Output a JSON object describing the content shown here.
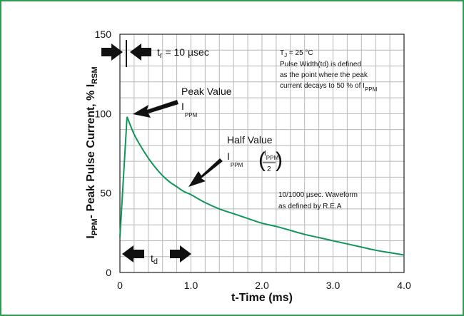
{
  "colors": {
    "frame": "#2e9a52",
    "curve": "#12955a",
    "grid": "#b8b8b8",
    "text": "#111111"
  },
  "chart_data": {
    "type": "line",
    "xlabel": "t-Time (ms)",
    "ylabel": {
      "main": "I",
      "sub": "PPM",
      "mid": "- Peak Pulse Current, % I",
      "sub2": "RSM"
    },
    "xlim": [
      0,
      4.0
    ],
    "ylim": [
      0,
      150
    ],
    "grid": true,
    "x_ticks": [
      {
        "value": 0,
        "label": "0"
      },
      {
        "value": 1.0,
        "label": "1.0"
      },
      {
        "value": 2.0,
        "label": "2.0"
      },
      {
        "value": 3.0,
        "label": "3.0"
      },
      {
        "value": 4.0,
        "label": "4.0"
      }
    ],
    "y_ticks": [
      {
        "value": 0,
        "label": "0"
      },
      {
        "value": 50,
        "label": "50"
      },
      {
        "value": 100,
        "label": "100"
      },
      {
        "value": 150,
        "label": "150"
      }
    ],
    "series": [
      {
        "x": [
          0,
          0.1,
          0.2,
          0.3,
          0.4,
          0.5,
          0.6,
          0.7,
          0.8,
          0.9,
          1.0,
          1.2,
          1.4,
          1.6,
          1.8,
          2.0,
          2.2,
          2.4,
          2.6,
          2.8,
          3.0,
          3.2,
          3.4,
          3.6,
          3.8,
          4.0
        ],
        "y": [
          22,
          98,
          87,
          79,
          72,
          66,
          61,
          57,
          54,
          51,
          49,
          44,
          40,
          37,
          34,
          31,
          29,
          26.5,
          24,
          22,
          20,
          18,
          16,
          14,
          12.5,
          11
        ]
      }
    ],
    "annotations": {
      "tr_label": "t",
      "tr_sub": "r",
      "tr_value": " = 10 µsec",
      "td_label": "t",
      "td_sub": "d",
      "peak_line1": "Peak Value",
      "peak_i": "I",
      "peak_sub": "PPM",
      "half_line1": "Half Value",
      "half_i": "I",
      "half_sub": "PPM",
      "frac_num_i": "I",
      "frac_num_sub": "PPM",
      "frac_den": "2",
      "note_tj": "T",
      "note_tj_sub": "J",
      "note_tj_val": " = 25 °C",
      "note_line2": "Pulse Width(td) is defined",
      "note_line3": "as the point where the peak",
      "note_line4": "current decays to 50 % of I",
      "note_line4_sub": "PPM",
      "waveform_line1": "10/1000 µsec. Waveform",
      "waveform_line2": "as defined by R.E.A"
    }
  }
}
